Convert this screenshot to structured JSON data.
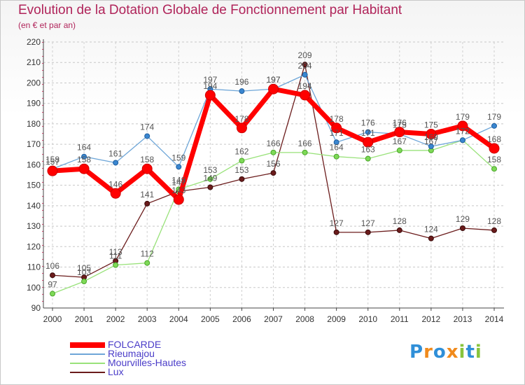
{
  "chart_data": {
    "type": "line",
    "title": "Evolution de la Dotation Globale de Fonctionnement par Habitant",
    "subtitle": "(en € et par an)",
    "categories": [
      "2000",
      "2001",
      "2002",
      "2003",
      "2004",
      "2005",
      "2006",
      "2007",
      "2008",
      "2009",
      "2010",
      "2011",
      "2012",
      "2013",
      "2014"
    ],
    "ylim": [
      90,
      220
    ],
    "yticks": [
      90,
      100,
      110,
      120,
      130,
      140,
      150,
      160,
      170,
      180,
      190,
      200,
      210,
      220
    ],
    "grid": true,
    "legend_position": "bottom-left",
    "series": [
      {
        "name": "FOLCARDE",
        "color": "#ff0000",
        "values": [
          157,
          158,
          146,
          158,
          143,
          194,
          178,
          197,
          194,
          178,
          171,
          176,
          175,
          179,
          168
        ]
      },
      {
        "name": "Rieumajou",
        "color": "#6ea6d8",
        "values": [
          158,
          164,
          161,
          174,
          159,
          197,
          196,
          197,
          204,
          171,
          176,
          175,
          169,
          172,
          179
        ]
      },
      {
        "name": "Mourvilles-Hautes",
        "color": "#99e27a",
        "values": [
          97,
          103,
          111,
          112,
          148,
          153,
          162,
          166,
          166,
          164,
          163,
          167,
          167,
          172,
          158
        ]
      },
      {
        "name": "Lux",
        "color": "#6b1c1c",
        "values": [
          106,
          105,
          113,
          141,
          147,
          149,
          153,
          156,
          209,
          127,
          127,
          128,
          124,
          129,
          128
        ]
      }
    ]
  },
  "logo": {
    "text": "Proxiti",
    "letters": [
      {
        "ch": "P",
        "color": "#2f8fd8"
      },
      {
        "ch": "r",
        "color": "#f08a1c"
      },
      {
        "ch": "o",
        "color": "#2f8fd8"
      },
      {
        "ch": "x",
        "color": "#f08a1c"
      },
      {
        "ch": "i",
        "color": "#88c43c"
      },
      {
        "ch": "t",
        "color": "#2f8fd8"
      },
      {
        "ch": "i",
        "color": "#88c43c"
      }
    ]
  }
}
